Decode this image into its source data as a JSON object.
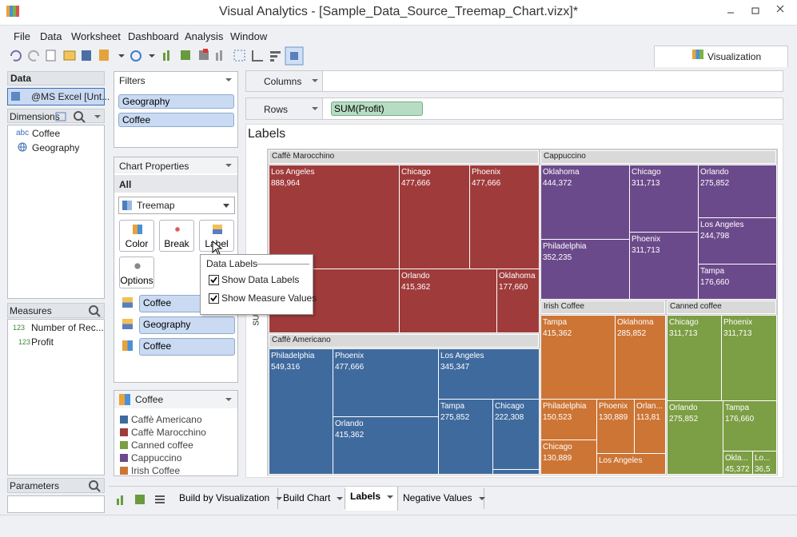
{
  "header": {
    "title": "Visual Analytics - [Sample_Data_Source_Treemap_Chart.vizx]*"
  },
  "menu": [
    "File",
    "Data",
    "Worksheet",
    "Dashboard",
    "Analysis",
    "Window"
  ],
  "toolbar": {
    "tab": "Visualization"
  },
  "data_panel": {
    "title": "Data",
    "source": "@MS Excel [Unt...",
    "dimensions_title": "Dimensions",
    "dimensions": [
      {
        "icon": "abc",
        "label": "Coffee"
      },
      {
        "label": "Geography"
      }
    ],
    "measures_title": "Measures",
    "measures": [
      {
        "icon": "123",
        "label": "Number of Rec..."
      },
      {
        "icon": "123",
        "label": "Profit"
      }
    ],
    "parameters_title": "Parameters"
  },
  "filters": {
    "title": "Filters",
    "items": [
      "Geography",
      "Coffee"
    ]
  },
  "chart_properties": {
    "title": "Chart Properties",
    "scope": "All",
    "chart_type": "Treemap",
    "buttons": [
      "Color",
      "Break",
      "Label",
      "Options"
    ],
    "marks": [
      "Coffee",
      "Geography",
      "Coffee"
    ]
  },
  "popup": {
    "title": "Data Labels",
    "options": [
      {
        "label": "Show Data Labels",
        "checked": true
      },
      {
        "label": "Show Measure Values",
        "checked": true
      }
    ]
  },
  "legend": {
    "title": "Coffee",
    "items": [
      {
        "label": "Caffè Americano",
        "color": "#3f6a9e"
      },
      {
        "label": "Caffè Marocchino",
        "color": "#a03b3b"
      },
      {
        "label": "Canned coffee",
        "color": "#7c9e44"
      },
      {
        "label": "Cappuccino",
        "color": "#6b4a8b"
      },
      {
        "label": "Irish Coffee",
        "color": "#cd7535"
      }
    ]
  },
  "shelves": {
    "columns": "Columns",
    "rows": "Rows",
    "rows_pill": "SUM(Profit)"
  },
  "chart": {
    "title": "Labels",
    "axis_label": "SUM(Profit)",
    "groups": [
      {
        "name": "Caffè Marocchino",
        "color": "#a03b3b",
        "cells": [
          {
            "label": "Los Angeles",
            "value": "888,964"
          },
          {},
          {
            "label": "Chicago",
            "value": "477,666"
          },
          {
            "label": "Phoenix",
            "value": "477,666"
          },
          {
            "label": "Orlando",
            "value": "415,362"
          },
          {
            "label": "Oklahoma",
            "value": "177,660"
          }
        ]
      },
      {
        "name": "Caffè Americano",
        "color": "#3f6a9e",
        "cells": [
          {
            "label": "Philadelphia",
            "value": "549,316"
          },
          {
            "label": "Phoenix",
            "value": "477,666"
          },
          {
            "label": "Orlando",
            "value": "415,362"
          },
          {
            "label": "Los Angeles",
            "value": "345,347"
          },
          {
            "label": "Tampa",
            "value": "275,852"
          },
          {
            "label": "Chicago",
            "value": "222,308"
          },
          {}
        ]
      },
      {
        "name": "Cappuccino",
        "color": "#6b4a8b",
        "cells": [
          {
            "label": "Oklahoma",
            "value": "444,372"
          },
          {
            "label": "Philadelphia",
            "value": "352,235"
          },
          {
            "label": "Chicago",
            "value": "311,713"
          },
          {
            "label": "Phoenix",
            "value": "311,713"
          },
          {
            "label": "Orlando",
            "value": "275,852"
          },
          {
            "label": "Los Angeles",
            "value": "244,798"
          },
          {
            "label": "Tampa",
            "value": "176,660"
          }
        ]
      },
      {
        "name": "Irish Coffee",
        "color": "#cd7535",
        "cells": [
          {
            "label": "Tampa",
            "value": "415,362"
          },
          {
            "label": "Oklahoma",
            "value": "285,852"
          },
          {
            "label": "Philadelphia",
            "value": "150,523"
          },
          {
            "label": "Phoenix",
            "value": "130,889"
          },
          {
            "label": "Orlan...",
            "value": "113,81"
          },
          {
            "label": "Chicago",
            "value": "130,889"
          },
          {
            "label": "Los Angeles"
          }
        ]
      },
      {
        "name": "Canned coffee",
        "color": "#7c9e44",
        "cells": [
          {
            "label": "Chicago",
            "value": "311,713"
          },
          {
            "label": "Phoenix",
            "value": "311,713"
          },
          {
            "label": "Orlando",
            "value": "275,852"
          },
          {
            "label": "Tampa",
            "value": "176,660"
          },
          {
            "label": "Okla...",
            "value": "45,372"
          },
          {
            "label": "Lo...",
            "value": "36,5"
          }
        ]
      }
    ]
  },
  "tabs": [
    {
      "label": "Build by Visualization"
    },
    {
      "label": "Build Chart"
    },
    {
      "label": "Labels",
      "active": true
    },
    {
      "label": "Negative Values"
    }
  ]
}
